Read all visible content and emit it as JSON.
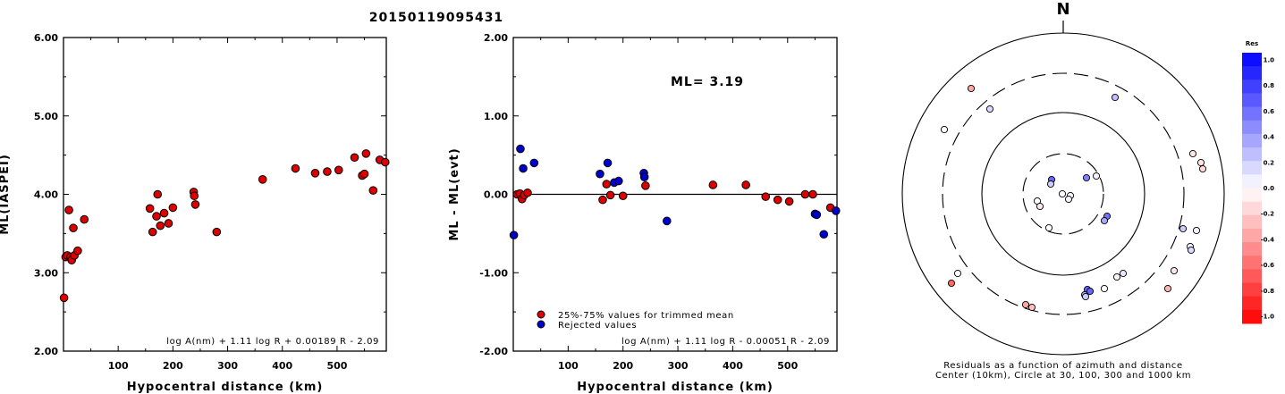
{
  "title": "20150119095431",
  "chart_data": [
    {
      "type": "scatter",
      "xlabel": "Hypocentral distance (km)",
      "ylabel": "ML(IASPEI)",
      "xlim": [
        0,
        590
      ],
      "ylim": [
        2.0,
        6.0
      ],
      "x_ticks": [
        100,
        200,
        300,
        400,
        500
      ],
      "y_ticks": [
        "2.00",
        "3.00",
        "4.00",
        "5.00",
        "6.00"
      ],
      "formula": "log A(nm) + 1.11 log R + 0.00189 R - 2.09",
      "series": [
        {
          "color": "#dd0000",
          "points": [
            [
              1,
              2.68
            ],
            [
              4,
              3.2
            ],
            [
              7,
              3.22
            ],
            [
              10,
              3.8
            ],
            [
              13,
              3.2
            ],
            [
              15,
              3.16
            ],
            [
              18,
              3.57
            ],
            [
              20,
              3.22
            ],
            [
              26,
              3.28
            ],
            [
              38,
              3.68
            ],
            [
              158,
              3.82
            ],
            [
              163,
              3.52
            ],
            [
              170,
              3.72
            ],
            [
              172,
              4.0
            ],
            [
              177,
              3.6
            ],
            [
              184,
              3.76
            ],
            [
              192,
              3.63
            ],
            [
              200,
              3.83
            ],
            [
              238,
              4.03
            ],
            [
              239,
              3.98
            ],
            [
              241,
              3.87
            ],
            [
              280,
              3.52
            ],
            [
              364,
              4.19
            ],
            [
              424,
              4.33
            ],
            [
              460,
              4.27
            ],
            [
              482,
              4.29
            ],
            [
              503,
              4.31
            ],
            [
              532,
              4.47
            ],
            [
              546,
              4.24
            ],
            [
              550,
              4.26
            ],
            [
              553,
              4.52
            ],
            [
              566,
              4.05
            ],
            [
              578,
              4.44
            ],
            [
              588,
              4.41
            ]
          ]
        }
      ]
    },
    {
      "type": "scatter",
      "xlabel": "Hypocentral distance (km)",
      "ylabel": "ML - ML(evt)",
      "xlim": [
        0,
        590
      ],
      "ylim": [
        -2.0,
        2.0
      ],
      "x_ticks": [
        100,
        200,
        300,
        400,
        500
      ],
      "y_ticks": [
        "-2.00",
        "-1.00",
        "0.00",
        "1.00",
        "2.00"
      ],
      "ml_label": "ML= 3.19",
      "formula": "log A(nm) + 1.11 log R - 0.00051 R - 2.09",
      "zero_line": 0,
      "series": [
        {
          "name": "25%-75% values for trimmed mean",
          "color": "#dd0000",
          "points": [
            [
              7,
              0.0
            ],
            [
              12,
              0.01
            ],
            [
              16,
              -0.06
            ],
            [
              20,
              -0.01
            ],
            [
              26,
              0.02
            ],
            [
              163,
              -0.07
            ],
            [
              170,
              0.13
            ],
            [
              177,
              -0.01
            ],
            [
              200,
              -0.02
            ],
            [
              241,
              0.11
            ],
            [
              364,
              0.12
            ],
            [
              424,
              0.12
            ],
            [
              460,
              -0.03
            ],
            [
              482,
              -0.07
            ],
            [
              503,
              -0.09
            ],
            [
              532,
              0.0
            ],
            [
              546,
              0.0
            ],
            [
              578,
              -0.17
            ]
          ]
        },
        {
          "name": "Rejected values",
          "color": "#0000cc",
          "points": [
            [
              1,
              -0.52
            ],
            [
              13,
              0.58
            ],
            [
              18,
              0.33
            ],
            [
              38,
              0.4
            ],
            [
              158,
              0.26
            ],
            [
              172,
              0.4
            ],
            [
              184,
              0.15
            ],
            [
              192,
              0.17
            ],
            [
              238,
              0.27
            ],
            [
              239,
              0.22
            ],
            [
              280,
              -0.34
            ],
            [
              550,
              -0.25
            ],
            [
              553,
              -0.26
            ],
            [
              566,
              -0.51
            ],
            [
              588,
              -0.21
            ]
          ]
        }
      ]
    },
    {
      "type": "scatter",
      "polar": true,
      "north_label": "N",
      "caption_line1": "Residuals as a function of azimuth and distance",
      "caption_line2": "Center (10km), Circle at 30, 100, 300 and 1000 km",
      "colorbar_title": "Res",
      "colorbar_ticks": [
        "1.0",
        "0.8",
        "0.6",
        "0.4",
        "0.2",
        "0.0",
        "-0.2",
        "-0.4",
        "-0.6",
        "-0.8",
        "-1.0"
      ],
      "colorbar_range": [
        -1.0,
        1.0
      ],
      "stations": [
        {
          "x": 1086,
          "y": 99,
          "res": -0.35
        },
        {
          "x": 1107,
          "y": 122,
          "res": 0.15
        },
        {
          "x": 1056,
          "y": 145,
          "res": 0.0
        },
        {
          "x": 1247,
          "y": 109,
          "res": 0.25
        },
        {
          "x": 1334,
          "y": 172,
          "res": -0.1
        },
        {
          "x": 1343,
          "y": 182,
          "res": -0.1
        },
        {
          "x": 1345,
          "y": 189,
          "res": -0.15
        },
        {
          "x": 1176,
          "y": 201,
          "res": 0.6
        },
        {
          "x": 1175,
          "y": 206,
          "res": 0.2
        },
        {
          "x": 1215,
          "y": 199,
          "res": 0.5
        },
        {
          "x": 1226,
          "y": 197,
          "res": 0.05
        },
        {
          "x": 1160,
          "y": 225,
          "res": 0.0
        },
        {
          "x": 1163,
          "y": 231,
          "res": -0.1
        },
        {
          "x": 1188,
          "y": 217,
          "res": 0.0
        },
        {
          "x": 1197,
          "y": 219,
          "res": 0.0
        },
        {
          "x": 1195,
          "y": 223,
          "res": 0.05
        },
        {
          "x": 1238,
          "y": 242,
          "res": 0.55
        },
        {
          "x": 1235,
          "y": 247,
          "res": 0.35
        },
        {
          "x": 1173,
          "y": 255,
          "res": 0.0
        },
        {
          "x": 1323,
          "y": 256,
          "res": 0.2
        },
        {
          "x": 1338,
          "y": 258,
          "res": 0.05
        },
        {
          "x": 1331,
          "y": 276,
          "res": 0.05
        },
        {
          "x": 1332,
          "y": 280,
          "res": 0.15
        },
        {
          "x": 1313,
          "y": 303,
          "res": -0.1
        },
        {
          "x": 1071,
          "y": 306,
          "res": 0.0
        },
        {
          "x": 1064,
          "y": 317,
          "res": -0.6
        },
        {
          "x": 1256,
          "y": 306,
          "res": 0.1
        },
        {
          "x": 1249,
          "y": 310,
          "res": -0.05
        },
        {
          "x": 1235,
          "y": 323,
          "res": 0.0
        },
        {
          "x": 1306,
          "y": 323,
          "res": -0.3
        },
        {
          "x": 1216,
          "y": 324,
          "res": 0.6
        },
        {
          "x": 1219,
          "y": 326,
          "res": 0.6
        },
        {
          "x": 1213,
          "y": 330,
          "res": 0.3
        },
        {
          "x": 1214,
          "y": 332,
          "res": 0.2
        },
        {
          "x": 1147,
          "y": 341,
          "res": -0.35
        },
        {
          "x": 1154,
          "y": 344,
          "res": -0.25
        }
      ]
    }
  ]
}
